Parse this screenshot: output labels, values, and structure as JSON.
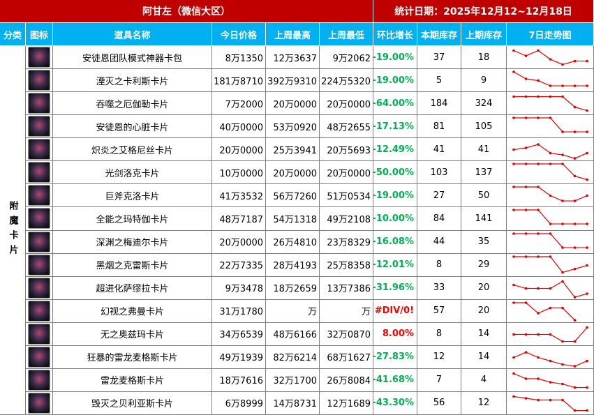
{
  "header": {
    "title": "阿甘左（微信大区）",
    "date": "统计日期：2025年12月12~12月18日"
  },
  "table": {
    "columns": [
      "分类",
      "图标",
      "道具名称",
      "今日价格",
      "上周最高",
      "上周最低",
      "环比增长",
      "本期库存",
      "上期库存",
      "7日走势图"
    ],
    "category": "附魔卡片",
    "rows": [
      {
        "name": "安徒恩团队模式神器卡包",
        "today": "8万1350",
        "week_high": "12万3637",
        "week_low": "9万2062",
        "growth": "-19.00%",
        "stock": 37,
        "prev_stock": 18,
        "trend": [
          9,
          6,
          9,
          4,
          1,
          3,
          3
        ]
      },
      {
        "name": "湮灭之卡利斯卡片",
        "today": "181万8710",
        "week_high": "392万9310",
        "week_low": "224万5320",
        "growth": "-19.00%",
        "stock": 5,
        "prev_stock": 9,
        "trend": [
          10,
          6,
          5,
          2,
          2,
          2,
          2
        ]
      },
      {
        "name": "吞噬之厄伽勒卡片",
        "today": "7万2000",
        "week_high": "20万0000",
        "week_low": "20万0000",
        "growth": "-64.00%",
        "stock": 184,
        "prev_stock": 324,
        "trend": [
          9,
          9,
          9,
          9,
          9,
          3,
          1
        ]
      },
      {
        "name": "安徒恩的心脏卡片",
        "today": "40万0000",
        "week_high": "53万0920",
        "week_low": "48万2655",
        "growth": "-17.13%",
        "stock": 81,
        "prev_stock": 105,
        "trend": [
          10,
          10,
          10,
          10,
          2,
          2,
          2
        ]
      },
      {
        "name": "炽炎之艾格尼丝卡片",
        "today": "20万0000",
        "week_high": "25万3941",
        "week_low": "20万5693",
        "growth": "-12.49%",
        "stock": 41,
        "prev_stock": 41,
        "trend": [
          5,
          6,
          8,
          3,
          2,
          0,
          3
        ]
      },
      {
        "name": "光剑洛克卡片",
        "today": "10万0000",
        "week_high": "20万0000",
        "week_low": "20万0000",
        "growth": "-50.00%",
        "stock": 103,
        "prev_stock": 137,
        "trend": [
          10,
          10,
          10,
          10,
          10,
          3,
          1
        ]
      },
      {
        "name": "巨斧克洛卡片",
        "today": "41万3532",
        "week_high": "56万7260",
        "week_low": "51万0534",
        "growth": "-19.00%",
        "stock": 27,
        "prev_stock": 50,
        "trend": [
          10,
          10,
          10,
          5,
          2,
          2,
          5
        ]
      },
      {
        "name": "全能之玛特伽卡片",
        "today": "48万7187",
        "week_high": "54万1318",
        "week_low": "49万2108",
        "growth": "-10.00%",
        "stock": 84,
        "prev_stock": 141,
        "trend": [
          10,
          10,
          10,
          2,
          2,
          2,
          2
        ]
      },
      {
        "name": "深渊之梅迪尔卡片",
        "today": "20万0000",
        "week_high": "26万4810",
        "week_low": "23万8329",
        "growth": "-16.08%",
        "stock": 44,
        "prev_stock": 35,
        "trend": [
          10,
          10,
          10,
          10,
          2,
          2,
          2
        ]
      },
      {
        "name": "黑烟之克雷斯卡片",
        "today": "22万7335",
        "week_high": "28万4193",
        "week_low": "25万8358",
        "growth": "-12.01%",
        "stock": 8,
        "prev_stock": 29,
        "trend": [
          10,
          10,
          10,
          10,
          1,
          3,
          5
        ]
      },
      {
        "name": "超进化萨缪拉卡片",
        "today": "9万3478",
        "week_high": "18万2659",
        "week_low": "13万7386",
        "growth": "-31.96%",
        "stock": 33,
        "prev_stock": 20,
        "trend": [
          7,
          5,
          5,
          5,
          9,
          0,
          2
        ]
      },
      {
        "name": "幻视之弗曼卡片",
        "today": "31万1780",
        "week_high": "万",
        "week_low": "万",
        "growth": "#DIV/0!",
        "stock": 57,
        "prev_stock": 20,
        "trend": [
          10,
          10,
          4,
          7,
          7,
          0,
          null
        ]
      },
      {
        "name": "无之奥兹玛卡片",
        "today": "34万6539",
        "week_high": "48万6166",
        "week_low": "32万0870",
        "growth": "8.00%",
        "stock": 8,
        "prev_stock": 14,
        "trend": [
          5,
          5,
          5,
          5,
          1,
          1,
          9
        ]
      },
      {
        "name": "狂暴的雷龙麦格斯卡片",
        "today": "49万1939",
        "week_high": "82万6214",
        "week_low": "68万1627",
        "growth": "-27.83%",
        "stock": 12,
        "prev_stock": 14,
        "trend": [
          5,
          8,
          5,
          3,
          1,
          0,
          3
        ]
      },
      {
        "name": "雷龙麦格斯卡片",
        "today": "18万7616",
        "week_high": "32万1700",
        "week_low": "26万8084",
        "growth": "-41.68%",
        "stock": 7,
        "prev_stock": 4,
        "trend": [
          9,
          6,
          6,
          4,
          3,
          1,
          1
        ]
      },
      {
        "name": "毁灭之贝利亚斯卡片",
        "today": "6万8999",
        "week_high": "14万8731",
        "week_low": "12万1689",
        "growth": "-43.30%",
        "stock": 56,
        "prev_stock": 12,
        "trend": [
          9,
          8,
          7,
          7,
          7,
          1,
          1
        ]
      }
    ]
  },
  "trend_ylim": [
    0,
    10
  ],
  "line_color": "#e00000"
}
